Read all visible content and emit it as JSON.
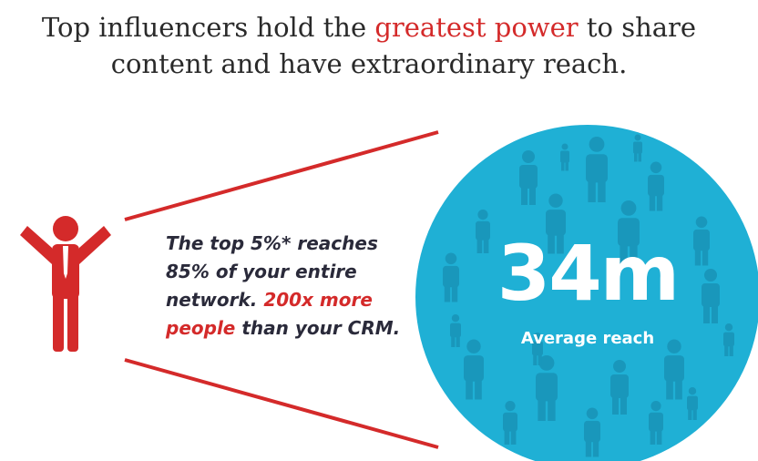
{
  "headline": {
    "lead": "Top influencers hold the",
    "highlight": "greatest power",
    "tail": "to share content and have extraordinary reach."
  },
  "body": {
    "lead": "The top 5%* reaches 85% of your entire network.",
    "highlight": "200x more people",
    "tail": "than your CRM."
  },
  "stat": {
    "value": "34m",
    "label": "Average reach"
  }
}
